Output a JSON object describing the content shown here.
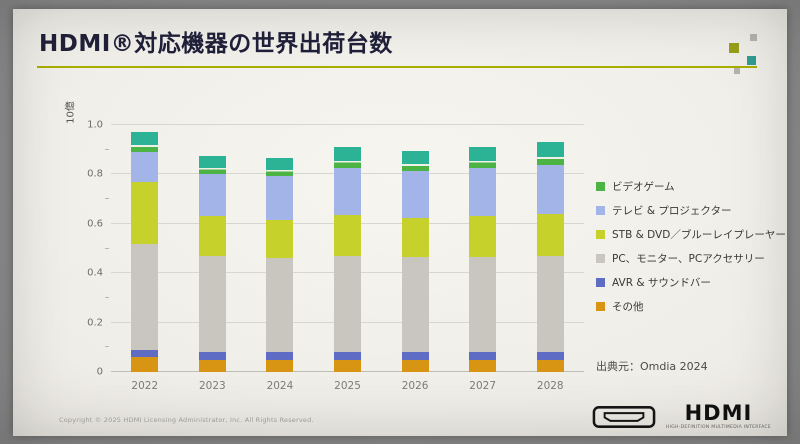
{
  "slide": {
    "title": "HDMI®対応機器の世界出荷台数",
    "source": "出典元：Omdia 2024",
    "copyright": "Copyright © 2025 HDMI Licensing Administrator, Inc. All Rights Reserved.",
    "accent_color": "#a9ae00",
    "logo": {
      "text": "HDMI",
      "subtext": "HIGH-DEFINITION MULTIMEDIA INTERFACE"
    }
  },
  "chart_data": {
    "type": "bar",
    "stacked": true,
    "title": "HDMI®対応機器の世界出荷台数",
    "xlabel": "",
    "ylabel": "10億",
    "ylim": [
      0,
      1.0
    ],
    "yticks": [
      0,
      0.2,
      0.4,
      0.6,
      0.8,
      1.0
    ],
    "grid": true,
    "legend_position": "right",
    "categories": [
      "2022",
      "2023",
      "2024",
      "2025",
      "2026",
      "2027",
      "2028"
    ],
    "series": [
      {
        "name": "その他",
        "color": "#d89413",
        "values": [
          0.06,
          0.05,
          0.05,
          0.05,
          0.05,
          0.05,
          0.05
        ]
      },
      {
        "name": "AVR & サウンドバー",
        "color": "#5e6cc4",
        "values": [
          0.03,
          0.03,
          0.03,
          0.03,
          0.03,
          0.03,
          0.03
        ]
      },
      {
        "name": "PC、モニター、PCアクセサリー",
        "color": "#c9c6c0",
        "values": [
          0.43,
          0.39,
          0.38,
          0.39,
          0.385,
          0.385,
          0.39
        ]
      },
      {
        "name": "STB & DVD／ブルーレイプレーヤー",
        "color": "#c6d22b",
        "values": [
          0.25,
          0.16,
          0.155,
          0.165,
          0.16,
          0.165,
          0.17
        ]
      },
      {
        "name": "テレビ & プロジェクター",
        "color": "#a3b5e8",
        "values": [
          0.12,
          0.17,
          0.18,
          0.19,
          0.19,
          0.195,
          0.2
        ]
      },
      {
        "name": "ビデオゲーム",
        "color": "#4cb445",
        "color_top": "#2cb295",
        "values": [
          0.08,
          0.075,
          0.07,
          0.085,
          0.08,
          0.085,
          0.09
        ]
      }
    ]
  }
}
